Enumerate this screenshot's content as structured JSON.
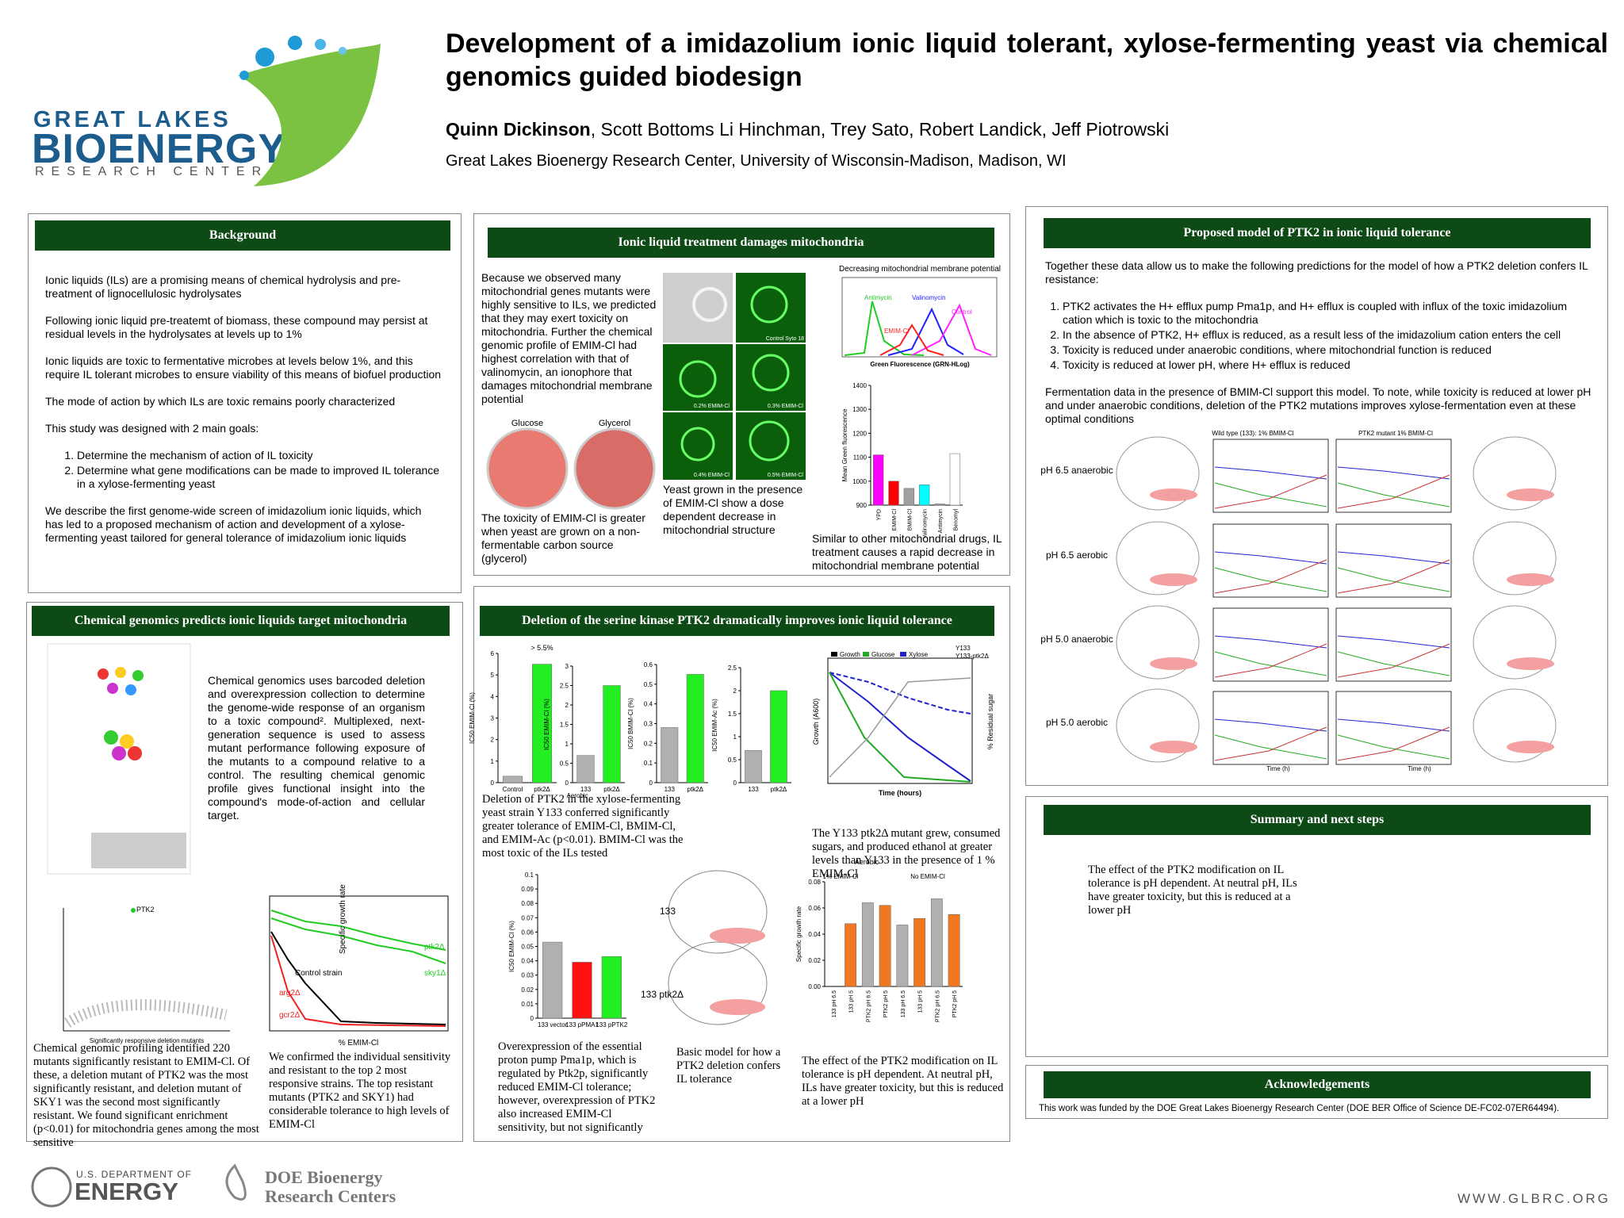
{
  "header": {
    "title": "Development of a imidazolium ionic liquid tolerant, xylose-fermenting yeast via chemical genomics guided biodesign",
    "presenter": "Quinn Dickinson",
    "coauthors": ", Scott Bottoms Li Hinchman, Trey Sato, Robert Landick, Jeff Piotrowski",
    "affiliation": "Great Lakes Bioenergy Research Center, University of Wisconsin-Madison, Madison, WI"
  },
  "logo": {
    "line1": "GREAT LAKES",
    "line2": "BIOENERGY",
    "line3": "RESEARCH CENTER"
  },
  "background": {
    "title": "Background",
    "p1": "Ionic liquids (ILs) are a promising means of chemical hydrolysis and pre-treatment of lignocellulosic hydrolysates",
    "p2": "Following ionic liquid pre-treatemt of biomass, these compound may persist at residual levels in the hydrolysates at levels up to 1%",
    "p3": "Ionic liquids are toxic to fermentative microbes at levels below 1%, and this require IL  tolerant microbes to ensure viability of this means of biofuel production",
    "p4": "The mode of action by which ILs are toxic remains poorly characterized",
    "p5": "This study was designed with 2 main goals:",
    "goals": [
      "Determine the mechanism of action of IL toxicity",
      "Determine what gene modifications can be made to improved IL tolerance in a xylose-fermenting yeast"
    ],
    "p6": "We describe the first genome-wide screen of imidazolium ionic liquids, which has led to a proposed mechanism of action and development of a xylose-fermenting yeast tailored for general tolerance of imidazolium ionic liquids"
  },
  "mito": {
    "title": "Ionic liquid treatment damages mitochondria",
    "text": "Because we observed many mitochondrial genes mutants were highly sensitive to ILs, we predicted that they may exert toxicity on mitochondria. Further the chemical genomic profile of EMIM-Cl had highest correlation with that of valinomycin, an ionophore that damages mitochondrial membrane potential",
    "petri_glucose": "Glucose",
    "petri_glycerol": "Glycerol",
    "petri_caption": "The toxicity of EMIM-Cl is greater when yeast are grown on  a non-fermentable carbon source (glycerol)",
    "micro_labels": [
      "Control Syto 18",
      "0.2% EMIM-Cl",
      "0.3% EMIM-Cl",
      "0.4% EMIM-Cl",
      "0.5% EMIM-Cl"
    ],
    "micro_caption": "Yeast grown in the presence of EMIM-Cl show a dose dependent decrease in mitochondrial structure",
    "flow_title": "Decreasing mitochondrial membrane potential",
    "flow_xlabel": "Green Fluorescence (GRN-HLog)",
    "flow_curves": [
      "Antimycin",
      "Valinomycin",
      "Control",
      "EMIM-Cl"
    ],
    "caption": "Similar to other mitochondrial drugs, IL treatment  causes a rapid decrease in mitochondrial membrane potential"
  },
  "model": {
    "title": "Proposed model of PTK2 in ionic liquid tolerance",
    "intro": "Together these data allow us to make the following predictions for the model of how a PTK2 deletion confers IL resistance:",
    "items": [
      "PTK2 activates the H+ efflux pump Pma1p, and H+ efflux is coupled with influx of the toxic imidazolium cation which is toxic to the mitochondria",
      "In the absence of PTK2, H+ efflux is reduced, as a result less of the imidazolium cation enters the cell",
      "Toxicity is reduced under anaerobic conditions, where mitochondrial function is reduced",
      "Toxicity is reduced at lower pH, where H+ efflux is reduced"
    ],
    "outro": "Fermentation data in the presence of BMIM-Cl support this model. To note, while toxicity is reduced at lower pH and under anaerobic conditions, deletion of the PTK2 mutations improves xylose-fermentation even at these optimal conditions",
    "col_wt": "Wild type (133): 1% BMIM-Cl",
    "col_mut": "PTK2 mutant 1% BMIM-Cl",
    "rows": [
      "pH 6.5 anaerobic",
      "pH 6.5 aerobic",
      "pH 5.0 anaerobic",
      "pH 5.0 aerobic"
    ],
    "xlabel": "Time (h)"
  },
  "chemgen": {
    "title": "Chemical genomics predicts ionic liquids target mitochondria",
    "text": "Chemical genomics uses barcoded deletion and overexpression collection to determine the genome-wide response of an organism to a toxic compound². Multiplexed, next-generation sequence is used to assess mutant performance following exposure of the mutants to a compound relative to a control. The resulting chemical genomic profile gives functional insight into the compound's mode-of-action and cellular target.",
    "scatter_label": "PTK2",
    "scatter_xlabel": "Significantly responsive deletion mutants",
    "caption1": "Chemical genomic profiling identified 220 mutants significantly resistant to EMIM-Cl. Of these, a deletion mutant of PTK2 was the most significantly resistant, and deletion mutant of SKY1 was the second most significantly resistant. We found significant enrichment (p<0.01) for mitochondria genes among the most sensitive",
    "growth_ylabel": "Specific growth rate",
    "growth_xlabel": "% EMIM-Cl",
    "growth_series": [
      "ptk2Δ",
      "sky1Δ",
      "Control strain",
      "arg2Δ",
      "gcr2Δ"
    ],
    "caption2": "We confirmed the individual sensitivity and resistant to the top 2 most responsive strains. The top resistant mutants (PTK2 and SKY1) had considerable tolerance to high levels of EMIM-Cl"
  },
  "deletion": {
    "title": "Deletion of the serine kinase PTK2 dramatically improves ionic liquid tolerance",
    "caption1": "Deletion of PTK2 in the xylose-fermenting yeast strain Y133 conferred significantly greater tolerance of EMIM-Cl,  BMIM-Cl, and EMIM-Ac (p<0.01). BMIM-Cl was the most toxic of the ILs tested",
    "aerobic": "Aerobic",
    "ferm_legend": [
      "Growth",
      "Glucose",
      "Xylose",
      "Y133",
      "Y133-ptk2Δ"
    ],
    "ferm_xlabel": "Time (hours)",
    "ferm_ylabel": "Growth (A600)",
    "ferm_y2label": "% Residual sugar",
    "caption2": "The Y133 ptk2Δ mutant grew, consumed sugars, and produced ethanol at greater levels than Y133 in the presence of 1 % EMIM-Cl",
    "caption3": "Overexpression of the essential proton pump Pma1p, which is regulated by Ptk2p, significantly reduced EMIM-Cl tolerance; however, overexpression of PTK2 also increased EMIM-Cl sensitivity, but not significantly",
    "strain_wt": "133",
    "strain_mut": "133 ptk2Δ",
    "caption4": "Basic model for how a PTK2 deletion confers IL tolerance",
    "rate_title": "Aerobic",
    "rate_groups": [
      "1% EMIM-Cl",
      "No EMIM-Cl"
    ],
    "rate_ylabel": "Specific growth rate",
    "caption5": "The effect of  the PTK2 modification on IL tolerance is pH dependent. At neutral pH, ILs have greater toxicity, but this is reduced at a lower pH"
  },
  "charts": [
    {
      "type": "bar",
      "ylabel": "IC50 EMIM-Cl (%)",
      "categories": [
        "Control",
        "ptk2Δ"
      ],
      "values": [
        0.3,
        5.5
      ],
      "colors": [
        "#b0b0b0",
        "#22ee22"
      ],
      "annotation": "> 5.5%",
      "ylim": [
        0,
        6
      ],
      "yticks": [
        0,
        1,
        2,
        3,
        4,
        5,
        6
      ]
    },
    {
      "type": "bar",
      "ylabel": "IC50 EMIM-Cl (%)",
      "categories": [
        "133",
        "ptk2Δ"
      ],
      "values": [
        0.7,
        2.5
      ],
      "colors": [
        "#b0b0b0",
        "#22ee22"
      ],
      "ylim": [
        0,
        3
      ],
      "yticks": [
        0,
        0.5,
        1,
        1.5,
        2,
        2.5,
        3
      ]
    },
    {
      "type": "bar",
      "ylabel": "IC50 BMIM-Cl (%)",
      "categories": [
        "133",
        "ptk2Δ"
      ],
      "values": [
        0.28,
        0.55
      ],
      "colors": [
        "#b0b0b0",
        "#22ee22"
      ],
      "ylim": [
        0,
        0.6
      ],
      "yticks": [
        0,
        0.1,
        0.2,
        0.3,
        0.4,
        0.5,
        0.6
      ]
    },
    {
      "type": "bar",
      "ylabel": "IC50 EMIM-Ac (%)",
      "categories": [
        "133",
        "ptk2Δ"
      ],
      "values": [
        0.7,
        2.0
      ],
      "colors": [
        "#b0b0b0",
        "#22ee22"
      ],
      "ylim": [
        0,
        2.5
      ],
      "yticks": [
        0,
        0.5,
        1,
        1.5,
        2,
        2.5
      ]
    },
    {
      "type": "bar",
      "ylabel": "Mean Green fluorescence",
      "categories": [
        "YPD",
        "EMIM-Cl",
        "BMIM-Cl",
        "Valinomycin",
        "Antimycin",
        "Benomyl"
      ],
      "values": [
        1110,
        1000,
        970,
        985,
        905,
        1115
      ],
      "colors": [
        "#ff00ff",
        "#ff0000",
        "#a0a0a0",
        "#00ffff",
        "#a0a0a0",
        "#ffffff"
      ],
      "ylim": [
        900,
        1400
      ],
      "yticks": [
        900,
        1000,
        1100,
        1200,
        1300,
        1400
      ]
    },
    {
      "type": "bar",
      "ylabel": "IC50 EMIM-Cl (%)",
      "categories": [
        "133 vector",
        "133 pPMA1",
        "133 pPTK2"
      ],
      "values": [
        0.053,
        0.039,
        0.043
      ],
      "colors": [
        "#b0b0b0",
        "#ff1111",
        "#22ee22"
      ],
      "ylim": [
        0,
        0.1
      ],
      "yticks": [
        0,
        0.01,
        0.02,
        0.03,
        0.04,
        0.05,
        0.06,
        0.07,
        0.08,
        0.09,
        0.1
      ]
    },
    {
      "type": "bar",
      "ylabel": "Specific growth rate",
      "categories": [
        "133 pH 6.5",
        "133 pH 5",
        "PTK2 pH 6.5",
        "PTK2 pH 5",
        "133 pH 6.5",
        "133 pH 5",
        "PTK2 pH 6.5",
        "PTK2 pH 5"
      ],
      "values": [
        0,
        0.048,
        0.064,
        0.062,
        0.047,
        0.052,
        0.067,
        0.055
      ],
      "colors": [
        "#f07820",
        "#f07820",
        "#b0b0b0",
        "#f07820",
        "#b0b0b0",
        "#f07820",
        "#b0b0b0",
        "#f07820"
      ],
      "ylim": [
        0,
        0.08
      ],
      "yticks": [
        {
          "value": 0,
          "label": "0.00"
        },
        0.02,
        0.04,
        0.06,
        0.08
      ]
    }
  ],
  "summary": {
    "title": "Summary and next steps",
    "text": "The effect of  the PTK2 modification on IL tolerance is pH dependent. At neutral pH, ILs have greater toxicity, but this is reduced at a lower pH"
  },
  "ack": {
    "title": "Acknowledgements",
    "text": "This work was funded by the DOE Great Lakes Bioenergy Research Center (DOE BER Office of Science DE-FC02-07ER64494)."
  },
  "footer": {
    "doe1": "U.S. DEPARTMENT OF",
    "doe2": "ENERGY",
    "brc1": "DOE Bioenergy",
    "brc2": "Research Centers",
    "url": "WWW.GLBRC.ORG"
  }
}
